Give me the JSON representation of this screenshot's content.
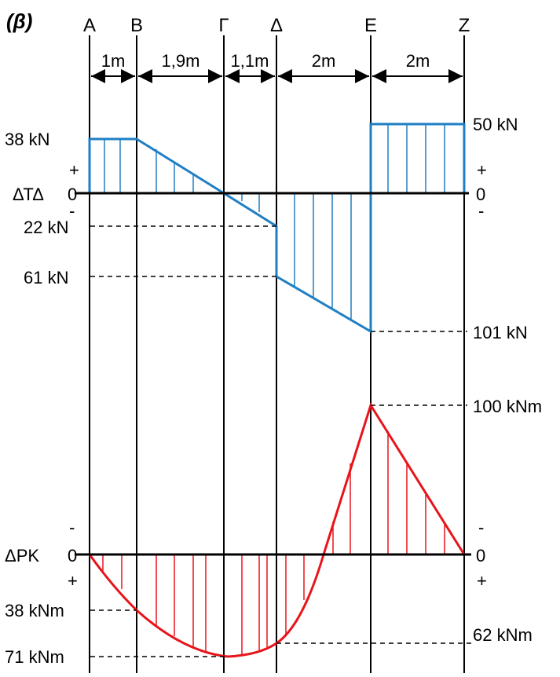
{
  "figure_label": "(β)",
  "points": [
    "A",
    "B",
    "Γ",
    "Δ",
    "Ε",
    "Ζ"
  ],
  "segments": [
    "1m",
    "1,9m",
    "1,1m",
    "2m",
    "2m"
  ],
  "shear": {
    "axis_label": "ΔΤΔ",
    "zero_left": "0",
    "zero_right": "0",
    "plus_left": "+",
    "minus_left": "-",
    "plus_right": "+",
    "minus_right": "-",
    "labels": {
      "v38": "38 kN",
      "v22": "22 kN",
      "v61": "61 kN",
      "v50": "50 kN",
      "v101": "101 kN"
    },
    "color": "#1f7fc4"
  },
  "moment": {
    "axis_label": "ΔΡΚ",
    "zero_left": "0",
    "zero_right": "0",
    "minus_left": "-",
    "plus_left": "+",
    "minus_right": "-",
    "plus_right": "+",
    "labels": {
      "m38": "38 kNm",
      "m71": "71 kNm",
      "m62": "62 kNm",
      "m100": "100 kNm"
    },
    "color": "#e8141a"
  }
}
